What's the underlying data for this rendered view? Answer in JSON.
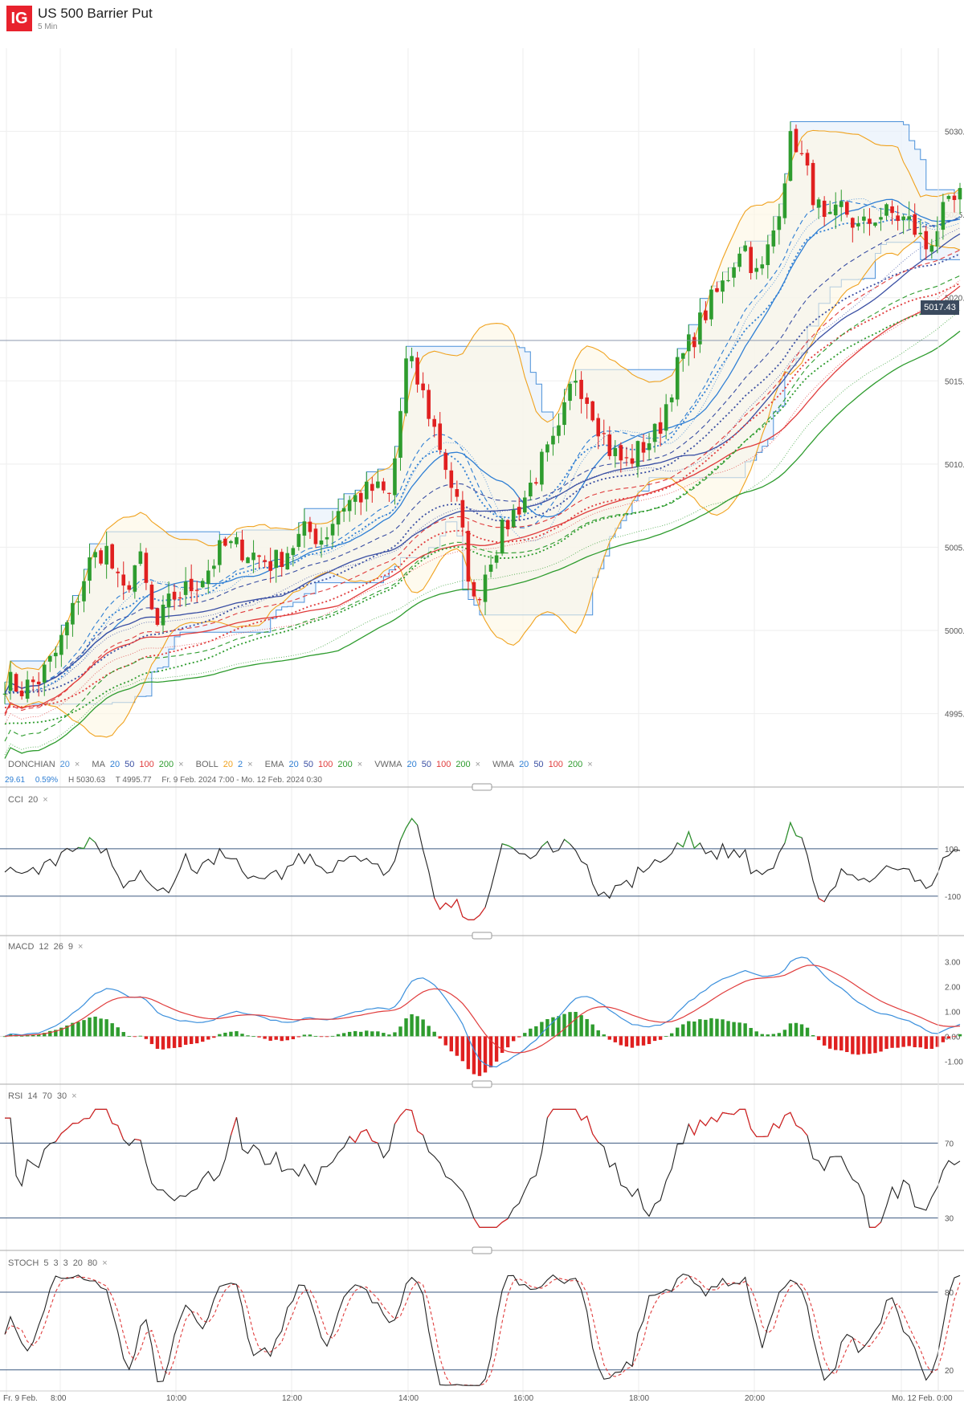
{
  "header": {
    "logo": "IG",
    "title": "US 500 Barrier Put",
    "interval": "5 Min"
  },
  "indicator_legend": {
    "donchian": {
      "name": "DONCHIAN",
      "params": [
        "20"
      ]
    },
    "ma": {
      "name": "MA",
      "params": [
        "20",
        "50",
        "100",
        "200"
      ]
    },
    "boll": {
      "name": "BOLL",
      "params": [
        "20",
        "2"
      ]
    },
    "ema": {
      "name": "EMA",
      "params": [
        "20",
        "50",
        "100",
        "200"
      ]
    },
    "vwma": {
      "name": "VWMA",
      "params": [
        "20",
        "50",
        "100",
        "200"
      ]
    },
    "wma": {
      "name": "WMA",
      "params": [
        "20",
        "50",
        "100",
        "200"
      ]
    },
    "close_glyph": "×"
  },
  "ohlc_line": {
    "change": "29.61",
    "change_pct": "0.59%",
    "high": "H 5030.63",
    "low": "T 4995.77",
    "range": "Fr. 9 Feb. 2024 7:00 - Mo. 12 Feb. 2024 0:30"
  },
  "colors": {
    "p20": "#2f7fd4",
    "p50": "#3a4fa3",
    "p100": "#e03c3c",
    "p200": "#2e9c2e",
    "boll": "#f0a21e",
    "donchian": "#4a90d9",
    "up": "#2e9c2e",
    "down": "#e02020"
  },
  "chart_data": [
    {
      "type": "candlestick",
      "title": "US 500 Barrier Put",
      "y_ticks": [
        "5030.00",
        "5025.00",
        "5020.00",
        "5015.00",
        "5010.00",
        "5005.00",
        "5000.00",
        "4995.00"
      ],
      "ylim": [
        4993,
        5035
      ],
      "x_ticks": [
        "Fr. 9 Feb.",
        "8:00",
        "10:00",
        "12:00",
        "14:00",
        "16:00",
        "18:00",
        "20:00",
        "Mo. 12 Feb. 0:00"
      ],
      "current_price": "5017.43",
      "close_key": [
        4997.0,
        4996.5,
        4997.0,
        4998.5,
        5001.0,
        5004.0,
        5005.0,
        5002.0,
        5004.5,
        5000.0,
        5002.0,
        5002.5,
        5003.5,
        5005.0,
        5005.0,
        5004.5,
        5004.0,
        5005.0,
        5006.0,
        5005.5,
        5007.5,
        5008.0,
        5008.5,
        5008.0,
        5016.5,
        5014.0,
        5011.0,
        5007.5,
        5001.5,
        5004.5,
        5006.5,
        5008.0,
        5010.0,
        5011.5,
        5015.5,
        5013.5,
        5011.0,
        5010.0,
        5011.0,
        5012.0,
        5015.5,
        5017.5,
        5019.5,
        5021.0,
        5023.5,
        5021.0,
        5024.5,
        5030.0,
        5027.0,
        5024.0,
        5025.5,
        5024.0,
        5025.0,
        5025.0,
        5024.5,
        5023.0,
        5025.0,
        5026.0
      ]
    },
    {
      "type": "line",
      "title": "CCI",
      "params": [
        "20"
      ],
      "levels": [
        "100",
        "-100"
      ],
      "range": [
        -250,
        300
      ]
    },
    {
      "type": "bar",
      "title": "MACD",
      "params": [
        "12",
        "26",
        "9"
      ],
      "y_ticks": [
        "3.00",
        "2.00",
        "1.00",
        "0.00",
        "-1.00"
      ],
      "ylim": [
        -1.6,
        3.4
      ]
    },
    {
      "type": "line",
      "title": "RSI",
      "params": [
        "14",
        "70",
        "30"
      ],
      "levels": [
        "70",
        "30"
      ],
      "ylim": [
        20,
        92
      ]
    },
    {
      "type": "line",
      "title": "STOCH",
      "params": [
        "5",
        "3",
        "3",
        "20",
        "80"
      ],
      "levels": [
        "80",
        "20"
      ],
      "ylim": [
        5,
        98
      ]
    }
  ]
}
